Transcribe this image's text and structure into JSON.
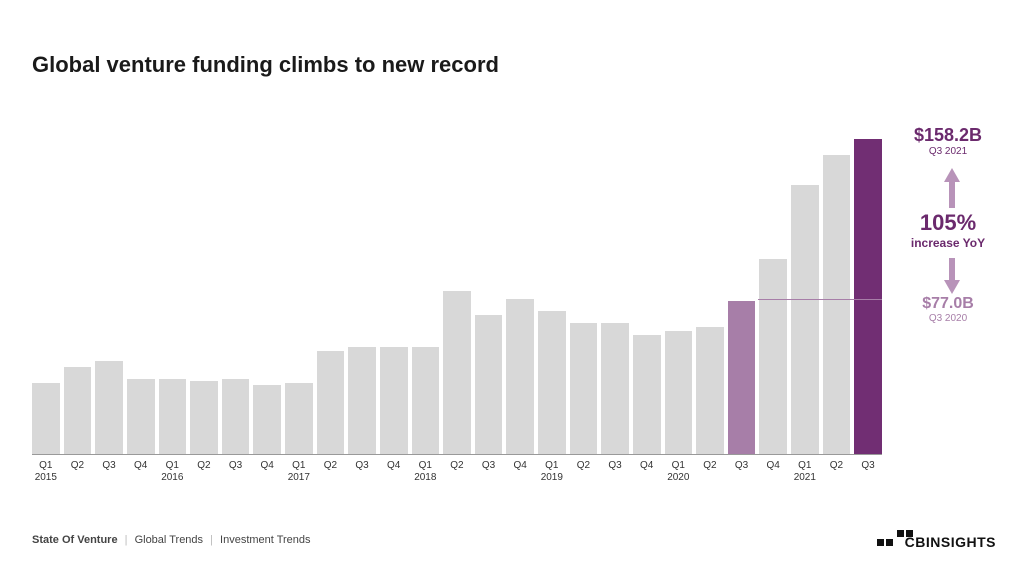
{
  "title": "Global venture funding climbs to new record",
  "chart": {
    "type": "bar",
    "background_color": "#ffffff",
    "default_bar_color": "#d8d8d8",
    "highlight_colors": {
      "q3_2020": "#a77ea8",
      "q3_2021": "#712e73"
    },
    "baseline_color": "#999999",
    "ylim": [
      0,
      160
    ],
    "bars": [
      {
        "q": "Q1",
        "year": "2015",
        "v": 36,
        "hl": ""
      },
      {
        "q": "Q2",
        "year": "",
        "v": 44,
        "hl": ""
      },
      {
        "q": "Q3",
        "year": "",
        "v": 47,
        "hl": ""
      },
      {
        "q": "Q4",
        "year": "",
        "v": 38,
        "hl": ""
      },
      {
        "q": "Q1",
        "year": "2016",
        "v": 38,
        "hl": ""
      },
      {
        "q": "Q2",
        "year": "",
        "v": 37,
        "hl": ""
      },
      {
        "q": "Q3",
        "year": "",
        "v": 38,
        "hl": ""
      },
      {
        "q": "Q4",
        "year": "",
        "v": 35,
        "hl": ""
      },
      {
        "q": "Q1",
        "year": "2017",
        "v": 36,
        "hl": ""
      },
      {
        "q": "Q2",
        "year": "",
        "v": 52,
        "hl": ""
      },
      {
        "q": "Q3",
        "year": "",
        "v": 54,
        "hl": ""
      },
      {
        "q": "Q4",
        "year": "",
        "v": 54,
        "hl": ""
      },
      {
        "q": "Q1",
        "year": "2018",
        "v": 54,
        "hl": ""
      },
      {
        "q": "Q2",
        "year": "",
        "v": 82,
        "hl": ""
      },
      {
        "q": "Q3",
        "year": "",
        "v": 70,
        "hl": ""
      },
      {
        "q": "Q4",
        "year": "",
        "v": 78,
        "hl": ""
      },
      {
        "q": "Q1",
        "year": "2019",
        "v": 72,
        "hl": ""
      },
      {
        "q": "Q2",
        "year": "",
        "v": 66,
        "hl": ""
      },
      {
        "q": "Q3",
        "year": "",
        "v": 66,
        "hl": ""
      },
      {
        "q": "Q4",
        "year": "",
        "v": 60,
        "hl": ""
      },
      {
        "q": "Q1",
        "year": "2020",
        "v": 62,
        "hl": ""
      },
      {
        "q": "Q2",
        "year": "",
        "v": 64,
        "hl": ""
      },
      {
        "q": "Q3",
        "year": "",
        "v": 77,
        "hl": "hl1"
      },
      {
        "q": "Q4",
        "year": "",
        "v": 98,
        "hl": ""
      },
      {
        "q": "Q1",
        "year": "2021",
        "v": 135,
        "hl": ""
      },
      {
        "q": "Q2",
        "year": "",
        "v": 150,
        "hl": ""
      },
      {
        "q": "Q3",
        "year": "",
        "v": 158.2,
        "hl": "hl2"
      }
    ],
    "label_fontsize": 10,
    "label_color": "#333333"
  },
  "callout": {
    "top": {
      "value": "$158.2B",
      "sub": "Q3 2021",
      "color": "#6b2a6d"
    },
    "mid": {
      "pct": "105%",
      "label": "increase YoY",
      "color": "#6b2a6d"
    },
    "bot": {
      "value": "$77.0B",
      "sub": "Q3 2020",
      "color": "#a77ea8"
    },
    "arrow_color_up": "#a77ea8",
    "arrow_color_down": "#a77ea8"
  },
  "footer": {
    "a": "State Of Venture",
    "b": "Global Trends",
    "c": "Investment Trends"
  },
  "brand": "CBINSIGHTS"
}
